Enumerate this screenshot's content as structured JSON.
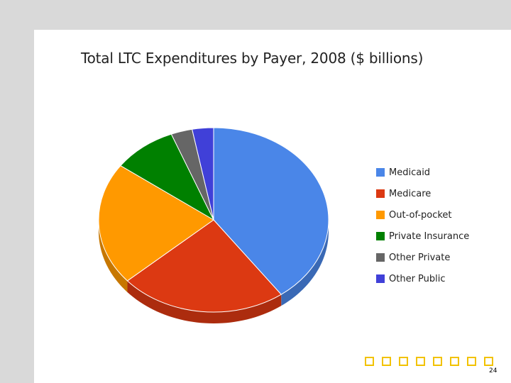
{
  "chart_data": {
    "type": "pie",
    "title": "Total LTC Expenditures by Payer, 2008 ($ billions)",
    "categories": [
      "Medicaid",
      "Medicare",
      "Out-of-pocket",
      "Private Insurance",
      "Other Private",
      "Other Public"
    ],
    "values": [
      40.0,
      23.5,
      21.5,
      9.0,
      3.0,
      3.0
    ],
    "colors": [
      "#4a86e8",
      "#dc3912",
      "#ff9900",
      "#008000",
      "#666666",
      "#4040d8"
    ],
    "legend_position": "right",
    "style": "3d"
  },
  "page_number": "24"
}
